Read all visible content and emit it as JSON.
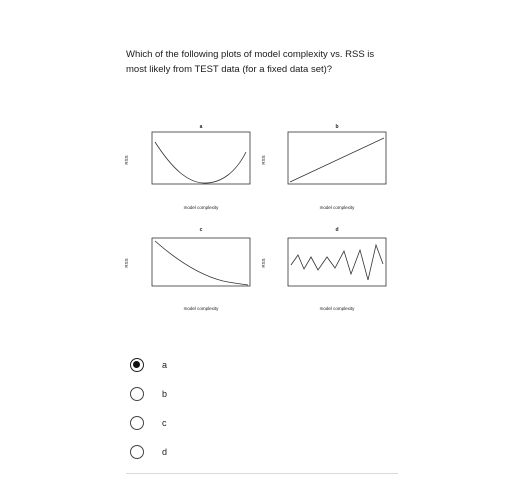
{
  "question": {
    "line1": "Which of the following plots of model complexity vs. RSS is",
    "line2": "most likely from TEST data (for a fixed data set)?"
  },
  "plots": [
    {
      "title": "a",
      "xlabel": "model complexity",
      "ylabel": "RSS",
      "curve": "u-shape"
    },
    {
      "title": "b",
      "xlabel": "model complexity",
      "ylabel": "RSS",
      "curve": "increasing-line"
    },
    {
      "title": "c",
      "xlabel": "model complexity",
      "ylabel": "RSS",
      "curve": "decreasing-curve"
    },
    {
      "title": "d",
      "xlabel": "model complexity",
      "ylabel": "RSS",
      "curve": "zigzag"
    }
  ],
  "options": [
    {
      "label": "a",
      "selected": true
    },
    {
      "label": "b",
      "selected": false
    },
    {
      "label": "c",
      "selected": false
    },
    {
      "label": "d",
      "selected": false
    }
  ],
  "colors": {
    "text": "#1a1a1a",
    "radio_border": "#444444",
    "radio_fill": "#111111",
    "divider": "#d9d9d9"
  }
}
